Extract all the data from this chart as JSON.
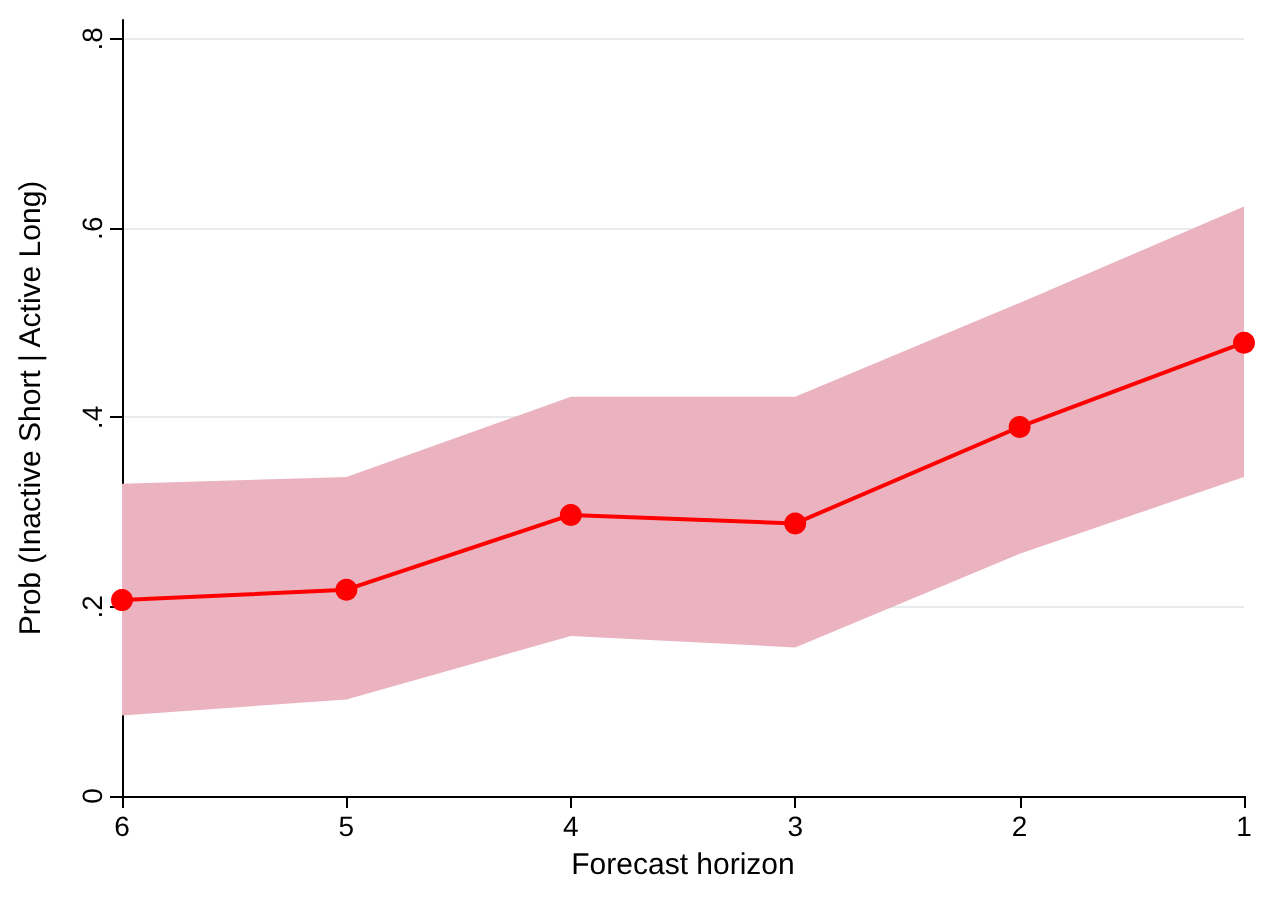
{
  "chart_data": {
    "type": "line",
    "xlabel": "Forecast horizon",
    "ylabel": "Prob (Inactive Short | Active Long)",
    "categories": [
      "6",
      "5",
      "4",
      "3",
      "2",
      "1"
    ],
    "series": [
      {
        "color": "#ff0000",
        "values": [
          0.207,
          0.218,
          0.297,
          0.288,
          0.39,
          0.479
        ],
        "lower": [
          0.085,
          0.102,
          0.169,
          0.157,
          0.256,
          0.337
        ],
        "upper": [
          0.33,
          0.337,
          0.422,
          0.422,
          0.521,
          0.623
        ]
      }
    ],
    "ylim": [
      0,
      0.82
    ],
    "yticks": [
      {
        "value": 0,
        "label": "0"
      },
      {
        "value": 0.2,
        "label": ".2"
      },
      {
        "value": 0.4,
        "label": ".4"
      },
      {
        "value": 0.6,
        "label": ".6"
      },
      {
        "value": 0.8,
        "label": ".8"
      }
    ],
    "grid": "y",
    "marker": "circle",
    "line_style": "solid"
  }
}
